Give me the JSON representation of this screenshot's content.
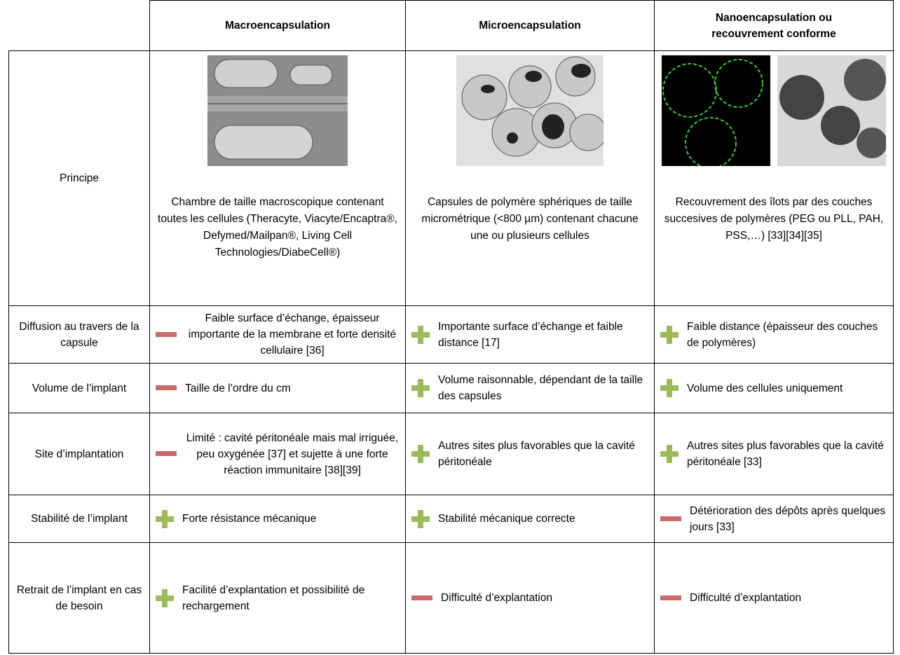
{
  "table": {
    "header": [
      "Macroencapsulation",
      "Microencapsulation",
      "Nanoencapsulation ou recouvrement conforme"
    ],
    "rows": [
      {
        "label": "Principe",
        "cells": [
          "Chambre de taille macroscopique contenant toutes les cellules (Theracyte, Viacyte/Encaptra®, Defymed/Mailpan®, Living Cell Technologies/DiabeCell®)",
          "Capsules de polymère sphériques de taille micrométrique (<800 µm) contenant chacune une ou plusieurs cellules",
          "Recouvrement des îlots par des couches succesives de polymères (PEG ou PLL, PAH, PSS,…) [33][34][35]"
        ]
      },
      {
        "label": "Diffusion au travers de la capsule",
        "cells": [
          "Faible surface d’échange, épaisseur importante de la membrane et forte densité cellulaire [36]",
          "Importante surface d’échange et faible distance [17]",
          "Faible distance (épaisseur des couches de polymères)"
        ]
      },
      {
        "label": "Volume de l’implant",
        "cells": [
          "Taille de l’ordre du cm",
          "Volume raisonnable, dépendant de la taille des capsules",
          "Volume des cellules uniquement"
        ]
      },
      {
        "label": "Site d’implantation",
        "cells": [
          "Limité : cavité péritonéale mais mal irriguée, peu oxygénée [37] et sujette à une forte réaction immunitaire [38][39]",
          "Autres sites plus favorables que la cavité péritonéale",
          "Autres sites plus favorables que la cavité péritonéale [33]"
        ]
      },
      {
        "label": "Stabilité de l’implant",
        "cells": [
          "Forte résistance mécanique",
          "Stabilité mécanique correcte",
          "Détérioration des dépôts après quelques jours [33]"
        ]
      },
      {
        "label": "Retrait de l’implant en cas de besoin",
        "cells": [
          "Facilité d’explantation et possibilité de rechargement",
          "Difficulté d’explantation",
          "Difficulté d’explantation"
        ]
      }
    ]
  }
}
